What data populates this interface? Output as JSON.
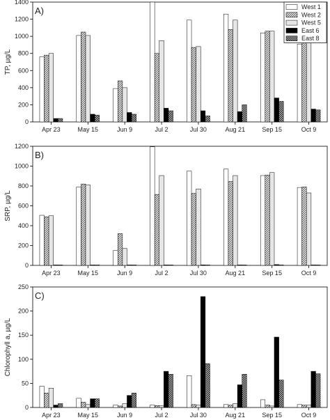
{
  "colors": {
    "West 1": "#ffffff",
    "West 2": "hatch",
    "West 5": "#e6e6e6",
    "East 6": "#000000",
    "East 8": "checker"
  },
  "chart_data": [
    {
      "type": "bar",
      "panel_label": "A)",
      "ylabel": "TP, µg/L",
      "ylim": [
        0,
        1400
      ],
      "yticks": [
        0,
        200,
        400,
        600,
        800,
        1000,
        1200,
        1400
      ],
      "categories": [
        "Apr 23",
        "May 15",
        "Jun 9",
        "Jul 2",
        "Jul 30",
        "Aug 21",
        "Sep 15",
        "Oct 9"
      ],
      "legend_position": "top-right",
      "series": [
        {
          "name": "West 1",
          "values": [
            760,
            1010,
            390,
            1430,
            1190,
            1260,
            1040,
            910
          ]
        },
        {
          "name": "West 2",
          "values": [
            780,
            1050,
            480,
            800,
            870,
            1080,
            1060,
            930
          ]
        },
        {
          "name": "West 5",
          "values": [
            800,
            1010,
            400,
            950,
            880,
            1190,
            1060,
            930
          ]
        },
        {
          "name": "East 6",
          "values": [
            40,
            90,
            110,
            160,
            130,
            120,
            280,
            150
          ]
        },
        {
          "name": "East 8",
          "values": [
            40,
            80,
            90,
            130,
            70,
            200,
            240,
            140
          ]
        }
      ]
    },
    {
      "type": "bar",
      "panel_label": "B)",
      "ylabel": "SRP, µg/L",
      "ylim": [
        0,
        1200
      ],
      "yticks": [
        0,
        200,
        400,
        600,
        800,
        1000,
        1200
      ],
      "categories": [
        "Apr 23",
        "May 15",
        "Jun 9",
        "Jul 2",
        "Jul 30",
        "Aug 21",
        "Sep 15",
        "Oct 9"
      ],
      "series": [
        {
          "name": "West 1",
          "values": [
            505,
            790,
            150,
            1195,
            950,
            970,
            905,
            785
          ]
        },
        {
          "name": "West 2",
          "values": [
            490,
            820,
            320,
            715,
            725,
            845,
            910,
            790
          ]
        },
        {
          "name": "West 5",
          "values": [
            500,
            810,
            170,
            905,
            770,
            905,
            935,
            730
          ]
        },
        {
          "name": "East 6",
          "values": [
            2,
            2,
            3,
            3,
            5,
            3,
            8,
            3
          ]
        },
        {
          "name": "East 8",
          "values": [
            2,
            2,
            2,
            2,
            3,
            2,
            3,
            2
          ]
        }
      ]
    },
    {
      "type": "bar",
      "panel_label": "C)",
      "ylabel": "Chlorophyll a, µg/L",
      "ylim": [
        0,
        250
      ],
      "yticks": [
        0,
        50,
        100,
        150,
        200,
        250
      ],
      "categories": [
        "Apr 23",
        "May 15",
        "Jun 9",
        "Jul 2",
        "Jul 30",
        "Aug 21",
        "Sep 15",
        "Oct 9"
      ],
      "series": [
        {
          "name": "West 1",
          "values": [
            44,
            19,
            5,
            5,
            66,
            6,
            16,
            6
          ]
        },
        {
          "name": "West 2",
          "values": [
            30,
            11,
            3,
            4,
            6,
            5,
            5,
            5
          ]
        },
        {
          "name": "West 5",
          "values": [
            40,
            6,
            8,
            4,
            5,
            8,
            3,
            5
          ]
        },
        {
          "name": "East 6",
          "values": [
            5,
            18,
            25,
            75,
            230,
            47,
            146,
            75
          ]
        },
        {
          "name": "East 8",
          "values": [
            8,
            18,
            30,
            69,
            91,
            69,
            57,
            70
          ]
        }
      ]
    }
  ]
}
